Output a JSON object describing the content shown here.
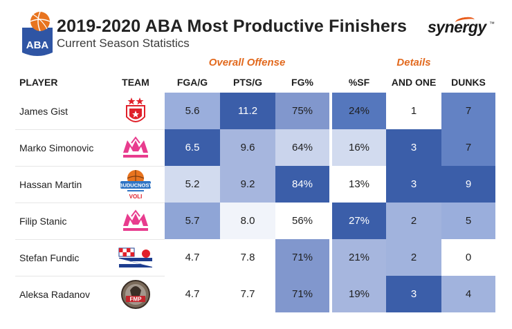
{
  "header": {
    "logo_text": "ABA",
    "title": "2019-2020 ABA Most Productive Finishers",
    "subtitle": "Current Season Statistics",
    "brand": "synergy",
    "brand_tm": "™"
  },
  "groups": {
    "offense": "Overall Offense",
    "details": "Details"
  },
  "columns": {
    "player": "PLAYER",
    "team": "TEAM",
    "stats": [
      "FGA/G",
      "PTS/G",
      "FG%",
      "%SF",
      "AND ONE",
      "DUNKS"
    ]
  },
  "rows": [
    {
      "player": "James Gist",
      "team_logo": "crvena-zvezda-logo",
      "stats": [
        "5.6",
        "11.2",
        "75%",
        "24%",
        "1",
        "7"
      ]
    },
    {
      "player": "Marko Simonovic",
      "team_logo": "mega-bemax-logo",
      "stats": [
        "6.5",
        "9.6",
        "64%",
        "16%",
        "3",
        "7"
      ]
    },
    {
      "player": "Hassan Martin",
      "team_logo": "buducnost-voli-logo",
      "team_text": [
        "BUDUCNOST",
        "VOLI"
      ],
      "stats": [
        "5.2",
        "9.2",
        "84%",
        "13%",
        "3",
        "9"
      ]
    },
    {
      "player": "Filip Stanic",
      "team_logo": "mega-bemax-logo",
      "stats": [
        "5.7",
        "8.0",
        "56%",
        "27%",
        "2",
        "5"
      ]
    },
    {
      "player": "Stefan Fundic",
      "team_logo": "zadar-logo",
      "stats": [
        "4.7",
        "7.8",
        "71%",
        "21%",
        "2",
        "0"
      ]
    },
    {
      "player": "Aleksa Radanov",
      "team_logo": "fmp-logo",
      "team_text": [
        "FMP"
      ],
      "stats": [
        "4.7",
        "7.7",
        "71%",
        "19%",
        "3",
        "4"
      ]
    }
  ],
  "cell_colors": [
    [
      "#9aaedc",
      "#3b5ea9",
      "#8197cd",
      "#5577bd",
      "#ffffff",
      "#6382c4"
    ],
    [
      "#3b5ea9",
      "#a6b6de",
      "#cad4ec",
      "#d2dbef",
      "#3b5ea9",
      "#6382c4"
    ],
    [
      "#d2dbef",
      "#a6b6de",
      "#3b5ea9",
      "#ffffff",
      "#3b5ea9",
      "#3b5ea9"
    ],
    [
      "#8fa5d6",
      "#f1f4fa",
      "#ffffff",
      "#3b5ea9",
      "#a1b3dd",
      "#9aaedc"
    ],
    [
      "#ffffff",
      "#ffffff",
      "#8197cd",
      "#a6b6de",
      "#a1b3dd",
      "#ffffff"
    ],
    [
      "#ffffff",
      "#ffffff",
      "#8197cd",
      "#a6b6de",
      "#3b5ea9",
      "#a1b3dd"
    ]
  ],
  "colors": {
    "accent_orange": "#e26a1f",
    "aba_blue": "#2f55a4",
    "zvezda_red": "#e0202a",
    "mega_pink": "#e83c8e",
    "buducnost_blue": "#2f74c4",
    "zadar_blue": "#1d3d8f",
    "fmp_red": "#c4262d"
  }
}
